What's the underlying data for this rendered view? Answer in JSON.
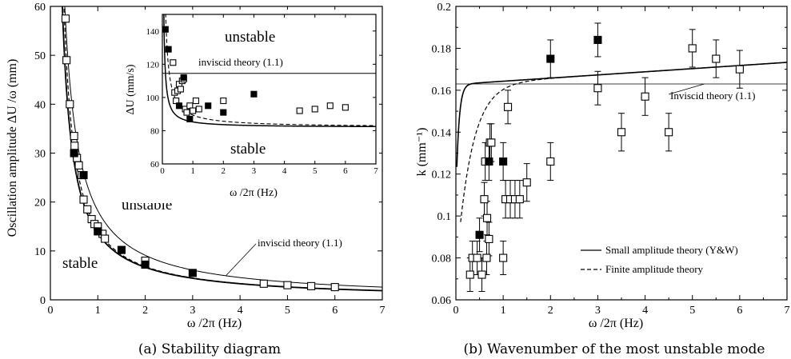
{
  "figure": {
    "caption_a": "(a) Stability diagram",
    "caption_b": "(b) Wavenumber of the most unstable mode"
  },
  "chart_data": [
    {
      "id": "a",
      "type": "scatter",
      "xlabel": "ω /2π (Hz)",
      "ylabel": "Oscillation amplitude  ΔU /ω  (mm)",
      "xlim": [
        0,
        7
      ],
      "ylim": [
        0,
        60
      ],
      "xticks": [
        0,
        1,
        2,
        3,
        4,
        5,
        6,
        7
      ],
      "yticks": [
        0,
        10,
        20,
        30,
        40,
        50,
        60
      ],
      "region_labels": {
        "unstable": "unstable",
        "stable": "stable"
      },
      "annotation": "inviscid theory (1.1)",
      "curves": {
        "inviscid_dU": 114.5,
        "small_dU_asym": 82,
        "finite_dU_asym": 82
      },
      "series": [
        {
          "marker": "open-square",
          "points": [
            [
              0.32,
              57.5
            ],
            [
              0.34,
              49
            ],
            [
              0.41,
              40
            ],
            [
              0.5,
              33.5
            ],
            [
              0.51,
              31.5
            ],
            [
              0.56,
              29
            ],
            [
              0.6,
              27.5
            ],
            [
              0.66,
              25.5
            ],
            [
              0.7,
              20.5
            ],
            [
              0.78,
              18.5
            ],
            [
              0.87,
              16.5
            ],
            [
              0.93,
              15.5
            ],
            [
              1.0,
              15
            ],
            [
              1.1,
              13.5
            ],
            [
              1.15,
              12.5
            ],
            [
              2.0,
              8
            ],
            [
              4.5,
              3.3
            ],
            [
              5.0,
              3
            ],
            [
              5.5,
              2.8
            ],
            [
              6.0,
              2.6
            ]
          ]
        },
        {
          "marker": "filled-square",
          "points": [
            [
              0.5,
              30
            ],
            [
              0.7,
              25.5
            ],
            [
              1.0,
              14
            ],
            [
              1.5,
              10.2
            ],
            [
              2.0,
              7.2
            ],
            [
              3.0,
              5.5
            ]
          ]
        }
      ],
      "inset": {
        "xlabel": "ω /2π (Hz)",
        "ylabel": "ΔU  (mm/s)",
        "xlim": [
          0,
          7
        ],
        "ylim": [
          60,
          150
        ],
        "xticks": [
          0,
          1,
          2,
          3,
          4,
          5,
          6,
          7
        ],
        "yticks": [
          60,
          80,
          100,
          120,
          140
        ],
        "annotation": "inviscid theory (1.1)",
        "region_labels": {
          "unstable": "unstable",
          "stable": "stable"
        },
        "series": [
          {
            "marker": "open-square",
            "points": [
              [
                0.35,
                121
              ],
              [
                0.4,
                103
              ],
              [
                0.45,
                98
              ],
              [
                0.5,
                104
              ],
              [
                0.55,
                108
              ],
              [
                0.6,
                105
              ],
              [
                0.65,
                110
              ],
              [
                0.7,
                111
              ],
              [
                0.75,
                93
              ],
              [
                0.8,
                91
              ],
              [
                0.9,
                95
              ],
              [
                1.0,
                92
              ],
              [
                1.1,
                98
              ],
              [
                1.2,
                93
              ],
              [
                2.0,
                98
              ],
              [
                4.5,
                92
              ],
              [
                5.0,
                93
              ],
              [
                5.5,
                95
              ],
              [
                6.0,
                94
              ]
            ]
          },
          {
            "marker": "filled-square",
            "points": [
              [
                0.1,
                141
              ],
              [
                0.2,
                129
              ],
              [
                0.55,
                95
              ],
              [
                0.7,
                112
              ],
              [
                0.9,
                87
              ],
              [
                1.5,
                95
              ],
              [
                2.0,
                91
              ],
              [
                3.0,
                102
              ]
            ]
          }
        ]
      }
    },
    {
      "id": "b",
      "type": "scatter",
      "xlabel": "ω /2π (Hz)",
      "ylabel": "k  (mm⁻¹)",
      "xlim": [
        0,
        7
      ],
      "ylim": [
        0.06,
        0.2
      ],
      "xticks": [
        0,
        1,
        2,
        3,
        4,
        5,
        6,
        7
      ],
      "yticks": [
        0.06,
        0.08,
        0.1,
        0.12,
        0.14,
        0.16,
        0.18,
        0.2
      ],
      "annotation": "Inviscid theory (1.1)",
      "inviscid_k": 0.163,
      "legend": [
        {
          "label": "Small amplitude theory (Y&W)",
          "style": "solid"
        },
        {
          "label": "Finite amplitude theory",
          "style": "dashed"
        }
      ],
      "legend_position": "bottom-right",
      "series": [
        {
          "marker": "open-square",
          "points": [
            [
              0.3,
              0.072,
              0.008
            ],
            [
              0.35,
              0.08,
              0.008
            ],
            [
              0.45,
              0.08,
              0.008
            ],
            [
              0.55,
              0.072,
              0.008
            ],
            [
              0.6,
              0.108,
              0.008
            ],
            [
              0.62,
              0.126,
              0.009
            ],
            [
              0.65,
              0.08,
              0.008
            ],
            [
              0.66,
              0.099,
              0.008
            ],
            [
              0.7,
              0.089,
              0.008
            ],
            [
              0.72,
              0.135,
              0.009
            ],
            [
              0.75,
              0.135,
              0.009
            ],
            [
              1.0,
              0.08,
              0.008
            ],
            [
              1.05,
              0.108,
              0.009
            ],
            [
              1.1,
              0.152,
              0.008
            ],
            [
              1.15,
              0.108,
              0.009
            ],
            [
              1.25,
              0.108,
              0.009
            ],
            [
              1.35,
              0.108,
              0.009
            ],
            [
              1.5,
              0.116,
              0.009
            ],
            [
              2.0,
              0.126,
              0.009
            ],
            [
              3.0,
              0.161,
              0.008
            ],
            [
              3.5,
              0.14,
              0.009
            ],
            [
              4.0,
              0.157,
              0.009
            ],
            [
              4.5,
              0.14,
              0.009
            ],
            [
              5.0,
              0.18,
              0.009
            ],
            [
              5.5,
              0.175,
              0.009
            ],
            [
              6.0,
              0.17,
              0.009
            ]
          ]
        },
        {
          "marker": "filled-square",
          "points": [
            [
              0.5,
              0.091,
              0.008
            ],
            [
              0.7,
              0.126,
              0.009
            ],
            [
              1.0,
              0.126,
              0.009
            ],
            [
              2.0,
              0.175,
              0.009
            ],
            [
              3.0,
              0.184,
              0.008
            ]
          ]
        }
      ]
    }
  ]
}
